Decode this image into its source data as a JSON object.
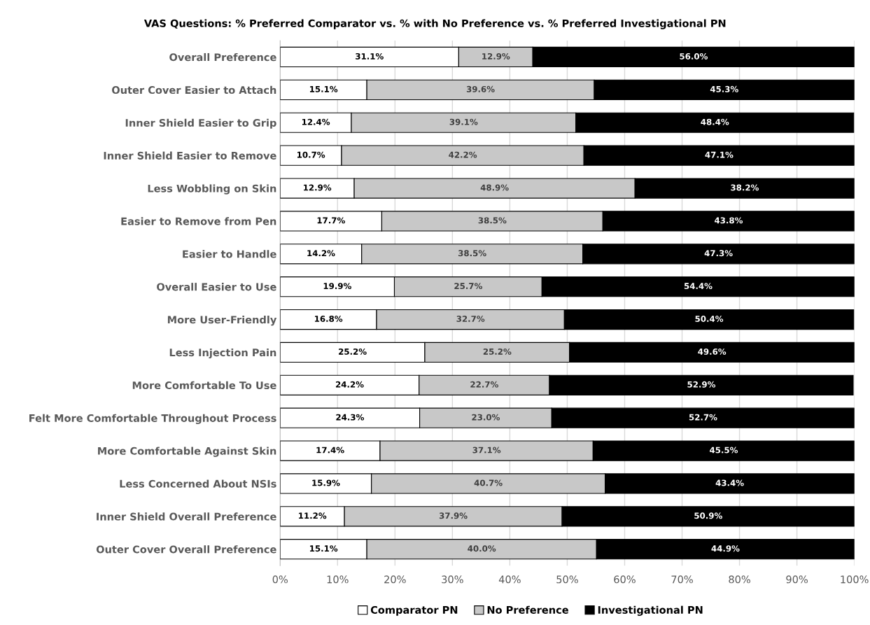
{
  "chart_data": {
    "type": "bar",
    "orientation": "horizontal",
    "stacked": true,
    "title": "VAS Questions: % Preferred Comparator vs. % with No Preference vs. % Preferred Investigational PN",
    "categories": [
      "Overall Preference",
      "Outer Cover Easier to Attach",
      "Inner Shield Easier to Grip",
      "Inner Shield Easier to Remove",
      "Less Wobbling on Skin",
      "Easier to Remove from Pen",
      "Easier to Handle",
      "Overall Easier to Use",
      "More User-Friendly",
      "Less Injection Pain",
      "More Comfortable To Use",
      "Felt More Comfortable Throughout Process",
      "More Comfortable Against Skin",
      "Less Concerned About NSIs",
      "Inner Shield Overall Preference",
      "Outer Cover Overall Preference"
    ],
    "series": [
      {
        "name": "Comparator PN",
        "color": "#ffffff",
        "values": [
          31.1,
          15.1,
          12.4,
          10.7,
          12.9,
          17.7,
          14.2,
          19.9,
          16.8,
          25.2,
          24.2,
          24.3,
          17.4,
          15.9,
          11.2,
          15.1
        ],
        "value_labels": [
          "31.1%",
          "15.1%",
          "12.4%",
          "10.7%",
          "12.9%",
          "17.7%",
          "14.2%",
          "19.9%",
          "16.8%",
          "25.2%",
          "24.2%",
          "24.3%",
          "17.4%",
          "15.9%",
          "11.2%",
          "15.1%"
        ]
      },
      {
        "name": "No Preference",
        "color": "#c8c8c8",
        "values": [
          12.9,
          39.6,
          39.1,
          42.2,
          48.9,
          38.5,
          38.5,
          25.7,
          32.7,
          25.2,
          22.7,
          23.0,
          37.1,
          40.7,
          37.9,
          40.0
        ],
        "value_labels": [
          "12.9%",
          "39.6%",
          "39.1%",
          "42.2%",
          "48.9%",
          "38.5%",
          "38.5%",
          "25.7%",
          "32.7%",
          "25.2%",
          "22.7%",
          "23.0%",
          "37.1%",
          "40.7%",
          "37.9%",
          "40.0%"
        ]
      },
      {
        "name": "Investigational PN",
        "color": "#000000",
        "values": [
          56.0,
          45.3,
          48.4,
          47.1,
          38.2,
          43.8,
          47.3,
          54.4,
          50.4,
          49.6,
          52.9,
          52.7,
          45.5,
          43.4,
          50.9,
          44.9
        ],
        "value_labels": [
          "56.0%",
          "45.3%",
          "48.4%",
          "47.1%",
          "38.2%",
          "43.8%",
          "47.3%",
          "54.4%",
          "50.4%",
          "49.6%",
          "52.9%",
          "52.7%",
          "45.5%",
          "43.4%",
          "50.9%",
          "44.9%"
        ]
      }
    ],
    "xlim": [
      0,
      100
    ],
    "xticks": [
      {
        "value": 0,
        "label": "0%"
      },
      {
        "value": 10,
        "label": "10%"
      },
      {
        "value": 20,
        "label": "20%"
      },
      {
        "value": 30,
        "label": "30%"
      },
      {
        "value": 40,
        "label": "40%"
      },
      {
        "value": 50,
        "label": "50%"
      },
      {
        "value": 60,
        "label": "60%"
      },
      {
        "value": 70,
        "label": "70%"
      },
      {
        "value": 80,
        "label": "80%"
      },
      {
        "value": 90,
        "label": "90%"
      },
      {
        "value": 100,
        "label": "100%"
      }
    ],
    "grid": "x",
    "legend": "bottom"
  }
}
